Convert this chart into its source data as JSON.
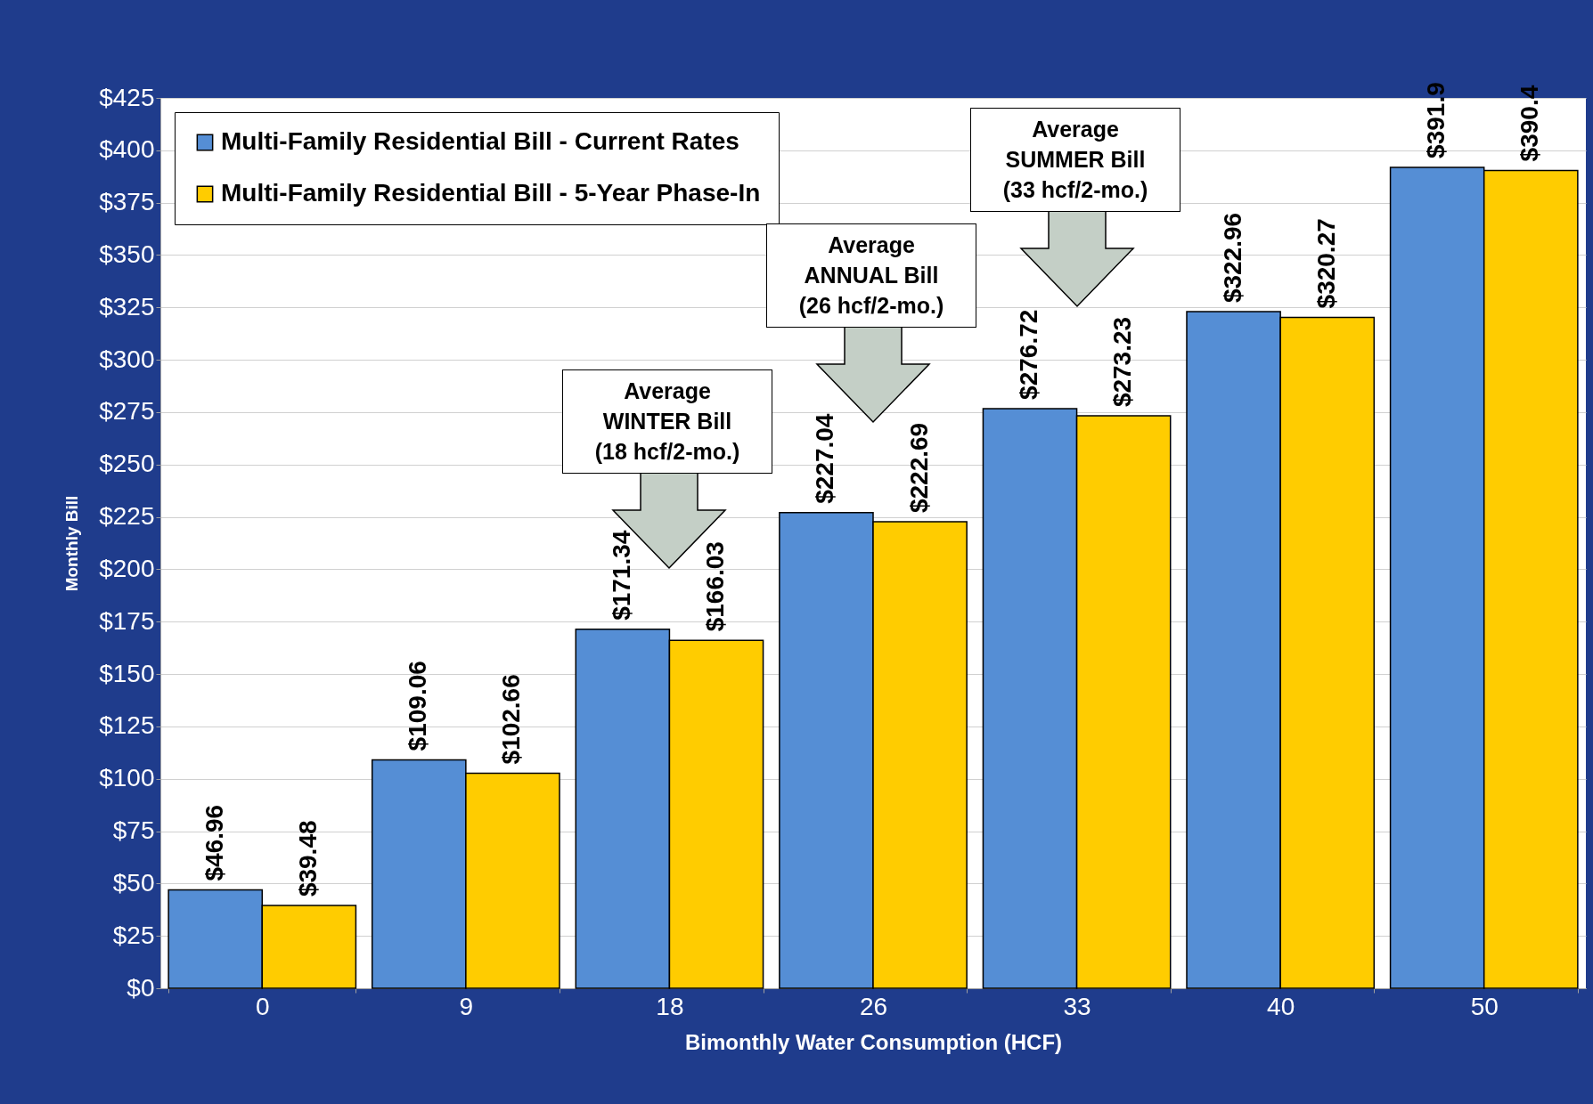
{
  "chart_data": {
    "type": "bar",
    "xlabel": "Bimonthly Water Consumption (HCF)",
    "ylabel": "Monthly Bill",
    "categories": [
      "0",
      "9",
      "18",
      "26",
      "33",
      "40",
      "50"
    ],
    "series": [
      {
        "name": "Multi-Family Residential Bill - Current Rates",
        "color": "#558ed5",
        "values": [
          46.96,
          109.06,
          171.34,
          227.04,
          276.72,
          322.96,
          391.9
        ]
      },
      {
        "name": "Multi-Family Residential Bill - 5-Year Phase-In",
        "color": "#ffcc00",
        "values": [
          39.48,
          102.66,
          166.03,
          222.69,
          273.23,
          320.27,
          390.4
        ]
      }
    ],
    "ylim": [
      0,
      425
    ],
    "yticks": [
      {
        "value": 0,
        "label": "$0"
      },
      {
        "value": 25,
        "label": "$25"
      },
      {
        "value": 50,
        "label": "$50"
      },
      {
        "value": 75,
        "label": "$75"
      },
      {
        "value": 100,
        "label": "$100"
      },
      {
        "value": 125,
        "label": "$125"
      },
      {
        "value": 150,
        "label": "$150"
      },
      {
        "value": 175,
        "label": "$175"
      },
      {
        "value": 200,
        "label": "$200"
      },
      {
        "value": 225,
        "label": "$225"
      },
      {
        "value": 250,
        "label": "$250"
      },
      {
        "value": 275,
        "label": "$275"
      },
      {
        "value": 300,
        "label": "$300"
      },
      {
        "value": 325,
        "label": "$325"
      },
      {
        "value": 350,
        "label": "$350"
      },
      {
        "value": 375,
        "label": "$375"
      },
      {
        "value": 400,
        "label": "$400"
      },
      {
        "value": 425,
        "label": "$425"
      }
    ],
    "value_labels": [
      [
        "$46.96",
        "$109.06",
        "$171.34",
        "$227.04",
        "$276.72",
        "$322.96",
        "$391.9"
      ],
      [
        "$39.48",
        "$102.66",
        "$166.03",
        "$222.69",
        "$273.23",
        "$320.27",
        "$390.4"
      ]
    ],
    "annotations": [
      "Average\nWINTER Bill\n(18 hcf/2-mo.)",
      "Average\nANNUAL Bill\n(26 hcf/2-mo.)",
      "Average\nSUMMER Bill\n(33 hcf/2-mo.)"
    ],
    "grid": "y",
    "legend": "top left"
  }
}
